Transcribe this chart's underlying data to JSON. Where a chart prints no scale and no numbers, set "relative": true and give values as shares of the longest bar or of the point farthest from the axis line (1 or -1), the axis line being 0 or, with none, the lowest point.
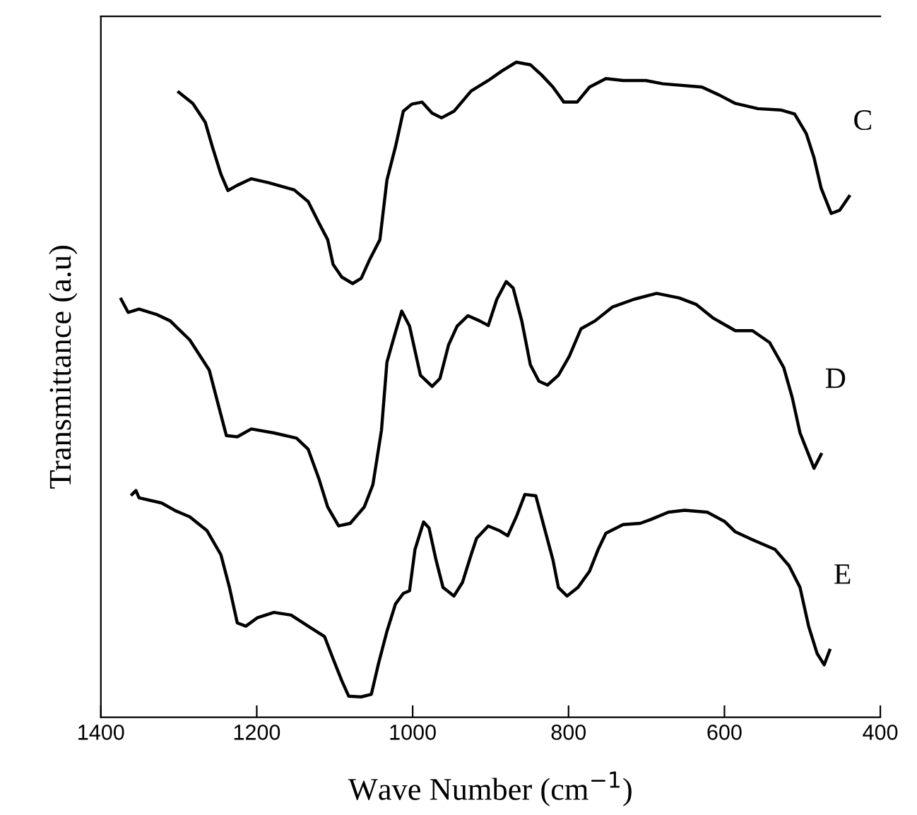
{
  "chart_data": {
    "type": "line",
    "relative": true,
    "xlabel": "Wave Number (cm$^{−1}$)",
    "ylabel": "Transmittance (a.u)",
    "xlim": [
      1400,
      400
    ],
    "xticks": [
      1400,
      1200,
      1000,
      800,
      600,
      400
    ],
    "tick_labels": "x",
    "grid": false,
    "legend": false,
    "marker": "none",
    "line_style": "solid",
    "series": [
      {
        "name": "C",
        "color": "#000000",
        "x": [
          1300,
          1282,
          1266,
          1257,
          1246,
          1237,
          1225,
          1207,
          1185,
          1152,
          1134,
          1120,
          1109,
          1102,
          1091,
          1077,
          1066,
          1055,
          1042,
          1033,
          1022,
          1012,
          1001,
          988,
          975,
          963,
          947,
          925,
          903,
          885,
          867,
          849,
          835,
          820,
          806,
          789,
          773,
          752,
          730,
          701,
          679,
          629,
          607,
          586,
          557,
          528,
          510,
          495,
          485,
          476,
          463,
          452,
          440
        ],
        "values": [
          0.954,
          0.937,
          0.908,
          0.871,
          0.829,
          0.804,
          0.812,
          0.822,
          0.816,
          0.805,
          0.787,
          0.754,
          0.729,
          0.691,
          0.672,
          0.662,
          0.67,
          0.699,
          0.729,
          0.82,
          0.871,
          0.925,
          0.936,
          0.939,
          0.922,
          0.915,
          0.925,
          0.956,
          0.972,
          0.987,
          1.0,
          0.996,
          0.981,
          0.962,
          0.939,
          0.939,
          0.962,
          0.975,
          0.972,
          0.972,
          0.967,
          0.962,
          0.95,
          0.937,
          0.929,
          0.927,
          0.921,
          0.891,
          0.854,
          0.808,
          0.769,
          0.774,
          0.795
        ]
      },
      {
        "name": "D",
        "color": "#000000",
        "x": [
          1374,
          1365,
          1351,
          1329,
          1311,
          1286,
          1261,
          1250,
          1239,
          1225,
          1207,
          1178,
          1149,
          1134,
          1120,
          1109,
          1095,
          1080,
          1062,
          1051,
          1040,
          1033,
          1022,
          1014,
          1004,
          990,
          975,
          965,
          954,
          943,
          929,
          914,
          903,
          892,
          880,
          871,
          860,
          849,
          838,
          827,
          813,
          799,
          784,
          766,
          744,
          716,
          687,
          658,
          636,
          614,
          586,
          564,
          542,
          524,
          513,
          503,
          492,
          485,
          476
        ],
        "values": [
          0.638,
          0.618,
          0.623,
          0.615,
          0.605,
          0.576,
          0.53,
          0.48,
          0.43,
          0.428,
          0.44,
          0.434,
          0.426,
          0.409,
          0.363,
          0.321,
          0.292,
          0.296,
          0.321,
          0.355,
          0.438,
          0.542,
          0.588,
          0.62,
          0.597,
          0.522,
          0.505,
          0.517,
          0.568,
          0.597,
          0.613,
          0.605,
          0.598,
          0.638,
          0.665,
          0.655,
          0.605,
          0.538,
          0.513,
          0.507,
          0.522,
          0.551,
          0.593,
          0.605,
          0.626,
          0.638,
          0.647,
          0.64,
          0.63,
          0.609,
          0.59,
          0.59,
          0.572,
          0.534,
          0.488,
          0.434,
          0.401,
          0.38,
          0.401
        ]
      },
      {
        "name": "E",
        "color": "#000000",
        "x": [
          1360,
          1355,
          1351,
          1322,
          1304,
          1286,
          1264,
          1246,
          1235,
          1225,
          1214,
          1199,
          1178,
          1156,
          1134,
          1113,
          1102,
          1091,
          1082,
          1066,
          1053,
          1044,
          1033,
          1022,
          1012,
          1004,
          997,
          986,
          979,
          970,
          961,
          947,
          936,
          925,
          918,
          903,
          889,
          878,
          867,
          856,
          842,
          831,
          820,
          813,
          802,
          788,
          773,
          762,
          752,
          730,
          708,
          694,
          672,
          651,
          622,
          600,
          586,
          564,
          535,
          517,
          503,
          492,
          481,
          472,
          465
        ],
        "values": [
          0.34,
          0.346,
          0.335,
          0.327,
          0.315,
          0.306,
          0.285,
          0.248,
          0.198,
          0.144,
          0.139,
          0.152,
          0.16,
          0.156,
          0.139,
          0.123,
          0.089,
          0.056,
          0.032,
          0.031,
          0.035,
          0.081,
          0.131,
          0.173,
          0.189,
          0.193,
          0.256,
          0.298,
          0.289,
          0.24,
          0.198,
          0.185,
          0.206,
          0.248,
          0.273,
          0.292,
          0.285,
          0.277,
          0.306,
          0.34,
          0.338,
          0.289,
          0.24,
          0.198,
          0.185,
          0.198,
          0.223,
          0.256,
          0.281,
          0.294,
          0.296,
          0.302,
          0.313,
          0.316,
          0.313,
          0.299,
          0.283,
          0.271,
          0.256,
          0.231,
          0.198,
          0.139,
          0.097,
          0.08,
          0.102
        ]
      }
    ]
  }
}
